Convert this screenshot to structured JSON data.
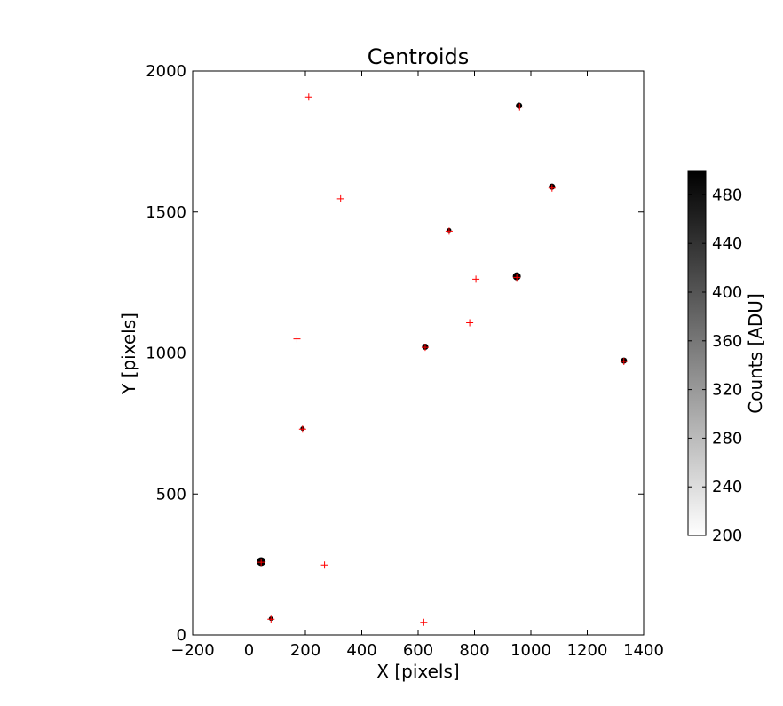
{
  "chart_data": {
    "type": "scatter",
    "title": "Centroids",
    "xlabel": "X [pixels]",
    "ylabel": "Y [pixels]",
    "xlim": [
      -200,
      1400
    ],
    "ylim": [
      0,
      2000
    ],
    "xticks": [
      -200,
      0,
      200,
      400,
      600,
      800,
      1000,
      1200,
      1400
    ],
    "yticks": [
      0,
      500,
      1000,
      1500,
      2000
    ],
    "grid": false,
    "sources": [
      {
        "x": 958,
        "y": 1877,
        "size": "small"
      },
      {
        "x": 1075,
        "y": 1590,
        "size": "small"
      },
      {
        "x": 710,
        "y": 1435,
        "size": "tiny"
      },
      {
        "x": 950,
        "y": 1272,
        "size": "medium"
      },
      {
        "x": 625,
        "y": 1022,
        "size": "small"
      },
      {
        "x": 1330,
        "y": 973,
        "size": "small"
      },
      {
        "x": 190,
        "y": 732,
        "size": "tiny"
      },
      {
        "x": 43,
        "y": 260,
        "size": "large"
      },
      {
        "x": 78,
        "y": 58,
        "size": "tiny"
      }
    ],
    "centroids": [
      {
        "x": 212,
        "y": 1908
      },
      {
        "x": 960,
        "y": 1872
      },
      {
        "x": 1075,
        "y": 1585
      },
      {
        "x": 325,
        "y": 1547
      },
      {
        "x": 710,
        "y": 1432
      },
      {
        "x": 805,
        "y": 1262
      },
      {
        "x": 950,
        "y": 1268
      },
      {
        "x": 783,
        "y": 1107
      },
      {
        "x": 170,
        "y": 1050
      },
      {
        "x": 625,
        "y": 1020
      },
      {
        "x": 1330,
        "y": 970
      },
      {
        "x": 190,
        "y": 730
      },
      {
        "x": 43,
        "y": 258
      },
      {
        "x": 268,
        "y": 248
      },
      {
        "x": 78,
        "y": 56
      },
      {
        "x": 620,
        "y": 45
      }
    ],
    "colorbar": {
      "label": "Counts [ADU]",
      "range": [
        200,
        500
      ],
      "ticks": [
        200,
        240,
        280,
        320,
        360,
        400,
        440,
        480
      ],
      "colormap": "gray_r"
    },
    "colors": {
      "centroid_marker": "#ff0000",
      "source": "#000000"
    }
  }
}
